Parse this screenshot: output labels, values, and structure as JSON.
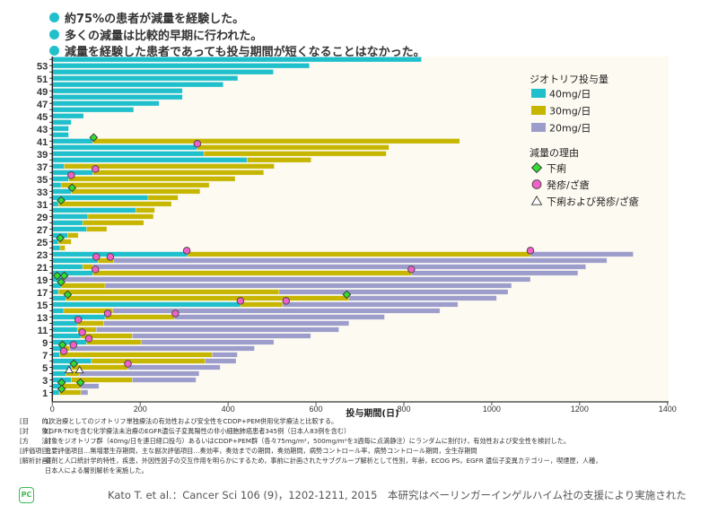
{
  "bullets": [
    "約75%の患者が減量を経験した。",
    "多くの減量は比較的早期に行われた。",
    "減量を経験した患者であっても投与期間が短くなることはなかった。"
  ],
  "chart_data": {
    "type": "bar",
    "orientation": "horizontal-stacked-swimmer",
    "xlabel": "投与期間(日)",
    "ylabel": "",
    "xlim": [
      0,
      1400
    ],
    "xticks": [
      0,
      200,
      400,
      600,
      800,
      1000,
      1200,
      1400
    ],
    "yticks": [
      1,
      3,
      5,
      7,
      9,
      11,
      13,
      15,
      17,
      19,
      21,
      23,
      25,
      27,
      29,
      31,
      33,
      35,
      37,
      39,
      41,
      43,
      45,
      47,
      49,
      51,
      53
    ],
    "legend_position": "right",
    "dose_legend_title": "ジオトリフ投与量",
    "doses": [
      {
        "name": "40mg/日",
        "color": "#1fbfcc"
      },
      {
        "name": "30mg/日",
        "color": "#c6b600"
      },
      {
        "name": "20mg/日",
        "color": "#9d9dcb"
      }
    ],
    "reason_legend_title": "減量の理由",
    "reasons": [
      {
        "name": "下痢",
        "symbol": "diamond",
        "color": "#33dd33"
      },
      {
        "name": "発疹/ざ瘡",
        "symbol": "circle",
        "color": "#f060c8"
      },
      {
        "name": "下痢および発疹/ざ瘡",
        "symbol": "triangle",
        "color": "#ffffff"
      }
    ],
    "patients_note": "each entry: patient number and cumulative end day of 40mg, 30mg, 20mg segments (null = not given)",
    "patients": [
      [
        54,
        840,
        null,
        null
      ],
      [
        53,
        585,
        null,
        null
      ],
      [
        52,
        503,
        null,
        null
      ],
      [
        51,
        422,
        null,
        null
      ],
      [
        50,
        389,
        null,
        null
      ],
      [
        49,
        296,
        null,
        null
      ],
      [
        48,
        296,
        null,
        null
      ],
      [
        47,
        243,
        null,
        null
      ],
      [
        46,
        185,
        null,
        null
      ],
      [
        45,
        71,
        null,
        null
      ],
      [
        44,
        43,
        null,
        null
      ],
      [
        43,
        37,
        null,
        null
      ],
      [
        42,
        37,
        null,
        null
      ],
      [
        41,
        92,
        927,
        null
      ],
      [
        40,
        330,
        766,
        null
      ],
      [
        39,
        345,
        760,
        null
      ],
      [
        38,
        443,
        589,
        null
      ],
      [
        37,
        27,
        505,
        null
      ],
      [
        36,
        92,
        481,
        null
      ],
      [
        35,
        37,
        416,
        null
      ],
      [
        34,
        20,
        357,
        null
      ],
      [
        33,
        43,
        336,
        null
      ],
      [
        32,
        218,
        286,
        null
      ],
      [
        31,
        14,
        271,
        null
      ],
      [
        30,
        190,
        233,
        null
      ],
      [
        29,
        81,
        230,
        null
      ],
      [
        28,
        69,
        208,
        null
      ],
      [
        27,
        78,
        124,
        null
      ],
      [
        26,
        35,
        59,
        null
      ],
      [
        25,
        14,
        43,
        null
      ],
      [
        24,
        18,
        29,
        null
      ],
      [
        23,
        308,
        1088,
        1322
      ],
      [
        22,
        104,
        139,
        1262
      ],
      [
        21,
        69,
        92,
        1214
      ],
      [
        20,
        92,
        817,
        1196
      ],
      [
        19,
        20,
        null,
        1088
      ],
      [
        18,
        20,
        120,
        1045
      ],
      [
        17,
        14,
        516,
        1037
      ],
      [
        16,
        31,
        675,
        1011
      ],
      [
        15,
        428,
        524,
        923
      ],
      [
        14,
        26,
        138,
        882
      ],
      [
        13,
        120,
        278,
        756
      ],
      [
        12,
        57,
        117,
        675
      ],
      [
        11,
        57,
        100,
        652
      ],
      [
        10,
        65,
        182,
        588
      ],
      [
        9,
        78,
        202,
        504
      ],
      [
        8,
        24,
        39,
        460
      ],
      [
        7,
        17,
        364,
        421
      ],
      [
        6,
        89,
        348,
        418
      ],
      [
        5,
        44,
        172,
        382
      ],
      [
        4,
        31,
        61,
        334
      ],
      [
        3,
        43,
        182,
        327
      ],
      [
        2,
        16,
        65,
        106
      ],
      [
        1,
        16,
        65,
        81
      ]
    ],
    "markers": [
      {
        "patient": 41,
        "day": 94,
        "reason": "下痢"
      },
      {
        "patient": 33,
        "day": 45,
        "reason": "下痢"
      },
      {
        "patient": 31,
        "day": 20,
        "reason": "下痢"
      },
      {
        "patient": 25,
        "day": 18,
        "reason": "下痢"
      },
      {
        "patient": 19,
        "day": 11,
        "reason": "下痢"
      },
      {
        "patient": 19,
        "day": 27,
        "reason": "下痢"
      },
      {
        "patient": 18,
        "day": 20,
        "reason": "下痢"
      },
      {
        "patient": 16,
        "day": 35,
        "reason": "下痢"
      },
      {
        "patient": 16,
        "day": 670,
        "reason": "下痢"
      },
      {
        "patient": 8,
        "day": 23,
        "reason": "下痢"
      },
      {
        "patient": 5,
        "day": 49,
        "reason": "下痢"
      },
      {
        "patient": 2,
        "day": 21,
        "reason": "下痢"
      },
      {
        "patient": 2,
        "day": 64,
        "reason": "下痢"
      },
      {
        "patient": 1,
        "day": 21,
        "reason": "下痢"
      },
      {
        "patient": 40,
        "day": 330,
        "reason": "発疹/ざ瘡"
      },
      {
        "patient": 36,
        "day": 98,
        "reason": "発疹/ざ瘡"
      },
      {
        "patient": 35,
        "day": 43,
        "reason": "発疹/ざ瘡"
      },
      {
        "patient": 23,
        "day": 306,
        "reason": "発疹/ざ瘡"
      },
      {
        "patient": 23,
        "day": 1088,
        "reason": "発疹/ざ瘡"
      },
      {
        "patient": 22,
        "day": 100,
        "reason": "発疹/ざ瘡"
      },
      {
        "patient": 22,
        "day": 132,
        "reason": "発疹/ざ瘡"
      },
      {
        "patient": 20,
        "day": 98,
        "reason": "発疹/ざ瘡"
      },
      {
        "patient": 20,
        "day": 817,
        "reason": "発疹/ざ瘡"
      },
      {
        "patient": 15,
        "day": 428,
        "reason": "発疹/ざ瘡"
      },
      {
        "patient": 15,
        "day": 532,
        "reason": "発疹/ざ瘡"
      },
      {
        "patient": 13,
        "day": 126,
        "reason": "発疹/ざ瘡"
      },
      {
        "patient": 13,
        "day": 280,
        "reason": "発疹/ざ瘡"
      },
      {
        "patient": 12,
        "day": 59,
        "reason": "発疹/ざ瘡"
      },
      {
        "patient": 10,
        "day": 68,
        "reason": "発疹/ざ瘡"
      },
      {
        "patient": 9,
        "day": 83,
        "reason": "発疹/ざ瘡"
      },
      {
        "patient": 8,
        "day": 48,
        "reason": "発疹/ざ瘡"
      },
      {
        "patient": 7,
        "day": 26,
        "reason": "発疹/ざ瘡"
      },
      {
        "patient": 5,
        "day": 172,
        "reason": "発疹/ざ瘡"
      },
      {
        "patient": 4,
        "day": 38,
        "reason": "下痢および発疹/ざ瘡"
      },
      {
        "patient": 4,
        "day": 62,
        "reason": "下痢および発疹/ざ瘡"
      }
    ]
  },
  "notes": [
    {
      "label": "[目　　的]",
      "text": "1次治療としてのジオトリフ単独療法の有効性および安全性をCDDP+PEM併用化学療法と比較する。"
    },
    {
      "label": "[対　　象]",
      "text": "EGFR-TKIを含む化学療法未治療のEGFR遺伝子変異陽性の非小細胞肺癌患者345例（日本人83例を含む）"
    },
    {
      "label": "[方　　法]",
      "text": "対象をジオトリフ群（40mg/日を連日経口投与）あるいはCDDP+PEM群（各々75mg/m²，500mg/m²を3週毎に点滴静注）にランダムに割付け，有効性および安全性を検討した。"
    },
    {
      "label": "[評価項目]",
      "text": "主要評価項目…無増悪生存期間，主な副次評価項目…奏効率，奏効までの期間，奏効期間，病勢コントロール率，病勢コントロール期間，全生存期間"
    },
    {
      "label": "[解析計画]",
      "text": "薬剤と人口統計学的特性，疾患，外因性因子の交互作用を明らかにするため，事前に計画されたサブグループ解析として性別，年齢，ECOG PS，EGFR 遺伝子変異カテゴリー，喫煙歴，人種，"
    },
    {
      "label": "",
      "text": "日本人による層別解析を実施した。"
    }
  ],
  "citation": "Kato T. et al.：Cancer Sci 106 (9)，1202-1211, 2015　本研究はベーリンガーインゲルハイム社の支援により実施された",
  "logo_text": "PC"
}
